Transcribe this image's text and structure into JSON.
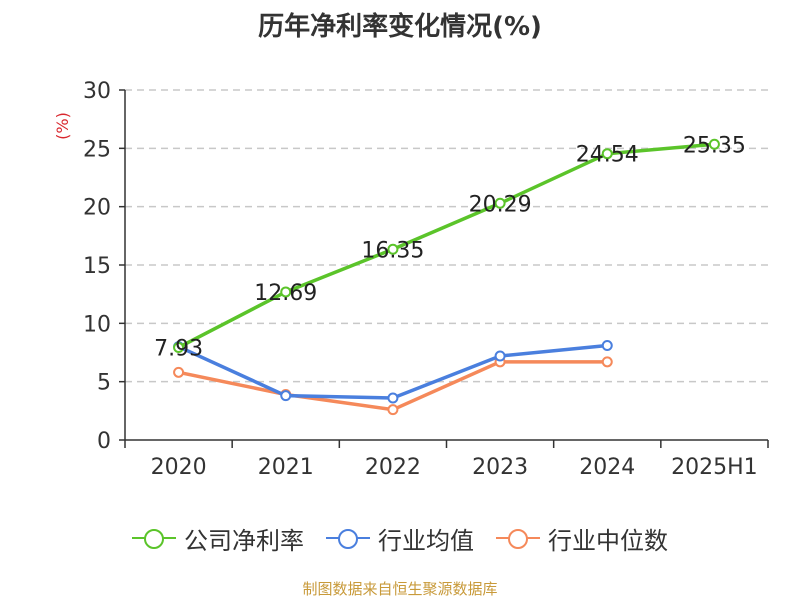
{
  "chart_data": {
    "type": "line",
    "title": "历年净利率变化情况(%)",
    "ylabel": "(%)",
    "xlabel": "",
    "categories": [
      "2020",
      "2021",
      "2022",
      "2023",
      "2024",
      "2025H1"
    ],
    "ylim": [
      0,
      30
    ],
    "yticks": [
      0,
      5,
      10,
      15,
      20,
      25,
      30
    ],
    "grid": true,
    "grid_style": "dashed",
    "legend_position": "bottom",
    "series": [
      {
        "name": "公司净利率",
        "color": "#5bc42a",
        "values": [
          7.93,
          12.69,
          16.35,
          20.29,
          24.54,
          25.35
        ],
        "show_labels": true
      },
      {
        "name": "行业均值",
        "color": "#4a7fde",
        "values": [
          8.0,
          3.8,
          3.6,
          7.2,
          8.1,
          null
        ],
        "show_labels": false
      },
      {
        "name": "行业中位数",
        "color": "#f5895a",
        "values": [
          5.8,
          3.9,
          2.6,
          6.7,
          6.7,
          null
        ],
        "show_labels": false
      }
    ],
    "label_values": [
      "7.93",
      "12.69",
      "16.35",
      "20.29",
      "24.54",
      "25.35"
    ]
  },
  "axis_colors": {
    "axis": "#333333",
    "grid": "#c8c8c8",
    "ylabel": "#d9272e"
  },
  "source": "制图数据来自恒生聚源数据库"
}
